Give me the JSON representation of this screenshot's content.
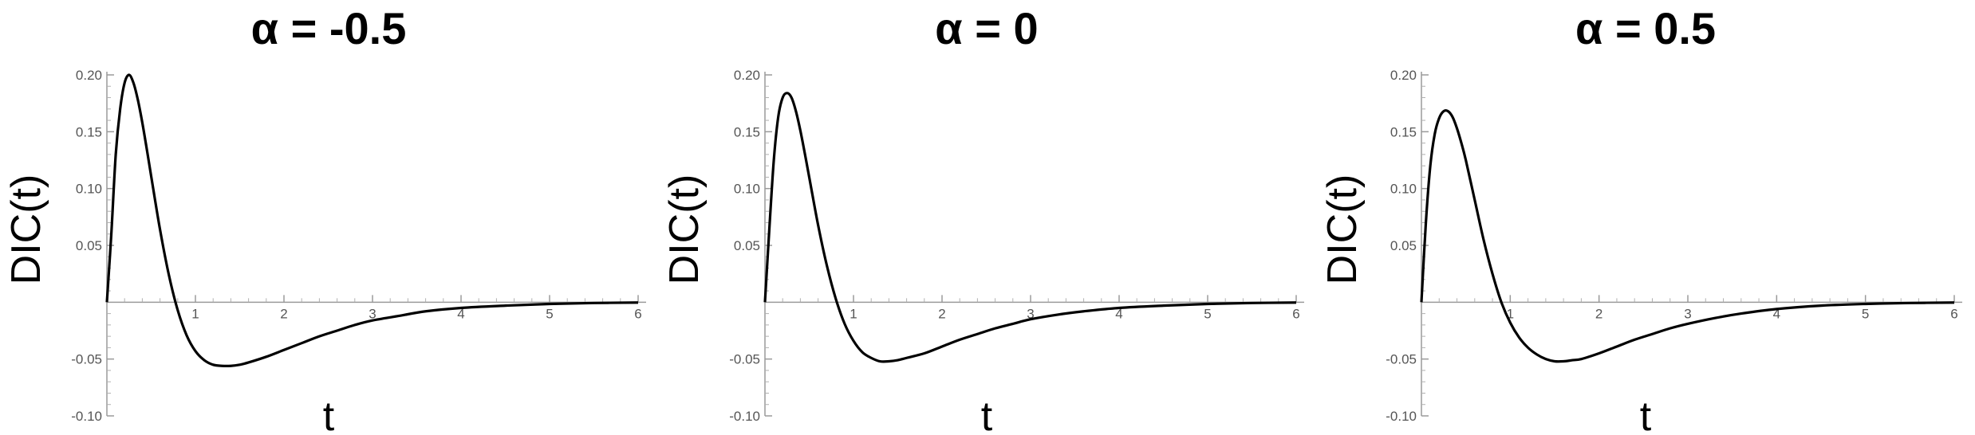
{
  "chart_data": [
    {
      "type": "line",
      "title": "α = -0.5",
      "xlabel": "t",
      "ylabel": "DIC(t)",
      "xlim": [
        0,
        6
      ],
      "ylim": [
        -0.1,
        0.2
      ],
      "x_ticks": [
        "1",
        "2",
        "3",
        "4",
        "5",
        "6"
      ],
      "y_ticks": [
        "-0.10",
        "-0.05",
        "0.05",
        "0.10",
        "0.15",
        "0.20"
      ],
      "grid": false,
      "series": [
        {
          "x": [
            0,
            0.05,
            0.1,
            0.15,
            0.2,
            0.25,
            0.3,
            0.35,
            0.4,
            0.45,
            0.5,
            0.6,
            0.7,
            0.8,
            0.9,
            1.0,
            1.1,
            1.2,
            1.3,
            1.4,
            1.5,
            1.6,
            1.8,
            2.0,
            2.2,
            2.4,
            2.6,
            2.8,
            3.0,
            3.3,
            3.6,
            4.0,
            4.5,
            5.0,
            5.5,
            6.0
          ],
          "y": [
            0,
            0.06,
            0.13,
            0.17,
            0.193,
            0.2,
            0.193,
            0.178,
            0.158,
            0.135,
            0.111,
            0.064,
            0.024,
            -0.007,
            -0.029,
            -0.043,
            -0.051,
            -0.055,
            -0.056,
            -0.056,
            -0.055,
            -0.053,
            -0.048,
            -0.042,
            -0.036,
            -0.03,
            -0.025,
            -0.02,
            -0.016,
            -0.012,
            -0.008,
            -0.005,
            -0.003,
            -0.0015,
            -0.0007,
            -0.0003
          ]
        }
      ]
    },
    {
      "type": "line",
      "title": "α = 0",
      "xlabel": "t",
      "ylabel": "DIC(t)",
      "xlim": [
        0,
        6
      ],
      "ylim": [
        -0.1,
        0.2
      ],
      "x_ticks": [
        "1",
        "2",
        "3",
        "4",
        "5",
        "6"
      ],
      "y_ticks": [
        "-0.10",
        "-0.05",
        "0.05",
        "0.10",
        "0.15",
        "0.20"
      ],
      "grid": false,
      "series": [
        {
          "x": [
            0,
            0.05,
            0.1,
            0.15,
            0.2,
            0.25,
            0.3,
            0.35,
            0.4,
            0.45,
            0.5,
            0.6,
            0.7,
            0.8,
            0.9,
            1.0,
            1.1,
            1.2,
            1.3,
            1.4,
            1.5,
            1.6,
            1.8,
            2.0,
            2.2,
            2.4,
            2.6,
            2.8,
            3.0,
            3.3,
            3.6,
            4.0,
            4.5,
            5.0,
            5.5,
            6.0
          ],
          "y": [
            0,
            0.065,
            0.125,
            0.163,
            0.18,
            0.184,
            0.18,
            0.168,
            0.151,
            0.131,
            0.11,
            0.068,
            0.032,
            0.003,
            -0.019,
            -0.034,
            -0.044,
            -0.049,
            -0.052,
            -0.052,
            -0.051,
            -0.049,
            -0.045,
            -0.039,
            -0.033,
            -0.028,
            -0.023,
            -0.019,
            -0.015,
            -0.011,
            -0.008,
            -0.005,
            -0.003,
            -0.0015,
            -0.0007,
            -0.0003
          ]
        }
      ]
    },
    {
      "type": "line",
      "title": "α = 0.5",
      "xlabel": "t",
      "ylabel": "DIC(t)",
      "xlim": [
        0,
        6
      ],
      "ylim": [
        -0.1,
        0.2
      ],
      "x_ticks": [
        "1",
        "2",
        "3",
        "4",
        "5",
        "6"
      ],
      "y_ticks": [
        "-0.10",
        "-0.05",
        "0.05",
        "0.10",
        "0.15",
        "0.20"
      ],
      "grid": false,
      "series": [
        {
          "x": [
            0,
            0.05,
            0.1,
            0.15,
            0.2,
            0.25,
            0.3,
            0.35,
            0.4,
            0.45,
            0.5,
            0.6,
            0.7,
            0.8,
            0.9,
            1.0,
            1.1,
            1.2,
            1.3,
            1.4,
            1.5,
            1.6,
            1.7,
            1.8,
            2.0,
            2.2,
            2.4,
            2.6,
            2.8,
            3.0,
            3.3,
            3.6,
            4.0,
            4.5,
            5.0,
            5.5,
            6.0
          ],
          "y": [
            0,
            0.07,
            0.12,
            0.148,
            0.162,
            0.168,
            0.168,
            0.163,
            0.153,
            0.14,
            0.125,
            0.09,
            0.055,
            0.025,
            0.0,
            -0.018,
            -0.031,
            -0.04,
            -0.046,
            -0.05,
            -0.052,
            -0.052,
            -0.051,
            -0.05,
            -0.045,
            -0.039,
            -0.033,
            -0.028,
            -0.023,
            -0.019,
            -0.014,
            -0.01,
            -0.006,
            -0.003,
            -0.0015,
            -0.0007,
            -0.0003
          ]
        }
      ]
    }
  ]
}
